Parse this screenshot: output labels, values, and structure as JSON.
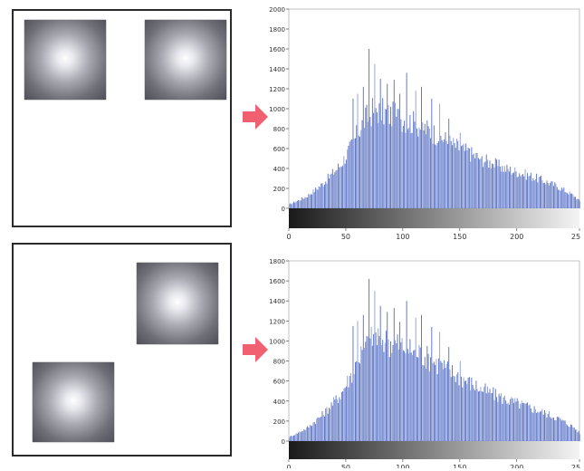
{
  "colors": {
    "bar": "#5a72c4",
    "bar_light": "#8fa0d8",
    "arrow": "#f06070",
    "panel_border": "#2b2b2b"
  },
  "icons": {
    "arrow": "right-arrow-icon"
  },
  "chart_data": [
    {
      "type": "bar",
      "title": "",
      "xlabel": "",
      "ylabel": "",
      "xlim": [
        0,
        255
      ],
      "ylim": [
        0,
        2000
      ],
      "x_ticks": [
        "0",
        "50",
        "100",
        "150",
        "200",
        "25"
      ],
      "y_ticks": [
        "0",
        "200",
        "400",
        "600",
        "800",
        "1000",
        "1200",
        "1400",
        "1600",
        "1800",
        "2000"
      ],
      "grid": false,
      "colorbar": "grayscale-gradient",
      "envelope": [
        [
          0,
          40
        ],
        [
          15,
          120
        ],
        [
          30,
          260
        ],
        [
          45,
          450
        ],
        [
          55,
          650
        ],
        [
          65,
          900
        ],
        [
          75,
          1030
        ],
        [
          85,
          980
        ],
        [
          100,
          930
        ],
        [
          115,
          850
        ],
        [
          130,
          760
        ],
        [
          145,
          650
        ],
        [
          160,
          560
        ],
        [
          175,
          480
        ],
        [
          190,
          410
        ],
        [
          205,
          360
        ],
        [
          220,
          300
        ],
        [
          235,
          230
        ],
        [
          250,
          130
        ],
        [
          255,
          70
        ]
      ],
      "spikes": [
        [
          56,
          1100
        ],
        [
          60,
          1150
        ],
        [
          65,
          1220
        ],
        [
          70,
          1600
        ],
        [
          75,
          1450
        ],
        [
          80,
          1300
        ],
        [
          86,
          1250
        ],
        [
          92,
          1290
        ],
        [
          97,
          1150
        ],
        [
          103,
          1360
        ],
        [
          111,
          1180
        ],
        [
          116,
          1220
        ],
        [
          125,
          1100
        ],
        [
          132,
          1050
        ],
        [
          140,
          900
        ],
        [
          150,
          760
        ],
        [
          158,
          600
        ],
        [
          168,
          500
        ],
        [
          178,
          450
        ],
        [
          185,
          420
        ]
      ]
    },
    {
      "type": "bar",
      "title": "",
      "xlabel": "",
      "ylabel": "",
      "xlim": [
        0,
        255
      ],
      "ylim": [
        0,
        1800
      ],
      "x_ticks": [
        "0",
        "50",
        "100",
        "150",
        "200",
        "25"
      ],
      "y_ticks": [
        "0",
        "200",
        "400",
        "600",
        "800",
        "1000",
        "1200",
        "1400",
        "1600",
        "1800"
      ],
      "grid": false,
      "colorbar": "grayscale-gradient",
      "envelope": [
        [
          0,
          40
        ],
        [
          15,
          130
        ],
        [
          30,
          280
        ],
        [
          45,
          480
        ],
        [
          55,
          700
        ],
        [
          65,
          950
        ],
        [
          75,
          1080
        ],
        [
          85,
          1030
        ],
        [
          100,
          980
        ],
        [
          115,
          900
        ],
        [
          130,
          800
        ],
        [
          145,
          690
        ],
        [
          160,
          590
        ],
        [
          175,
          500
        ],
        [
          190,
          430
        ],
        [
          205,
          370
        ],
        [
          220,
          310
        ],
        [
          235,
          240
        ],
        [
          250,
          140
        ],
        [
          255,
          80
        ]
      ],
      "spikes": [
        [
          56,
          1150
        ],
        [
          60,
          1200
        ],
        [
          65,
          1260
        ],
        [
          70,
          1620
        ],
        [
          75,
          1500
        ],
        [
          80,
          1350
        ],
        [
          86,
          1290
        ],
        [
          92,
          1330
        ],
        [
          97,
          1190
        ],
        [
          103,
          1400
        ],
        [
          111,
          1230
        ],
        [
          116,
          1260
        ],
        [
          125,
          1140
        ],
        [
          132,
          1090
        ],
        [
          140,
          940
        ],
        [
          150,
          800
        ],
        [
          158,
          640
        ],
        [
          168,
          540
        ],
        [
          178,
          480
        ],
        [
          185,
          450
        ]
      ]
    }
  ]
}
